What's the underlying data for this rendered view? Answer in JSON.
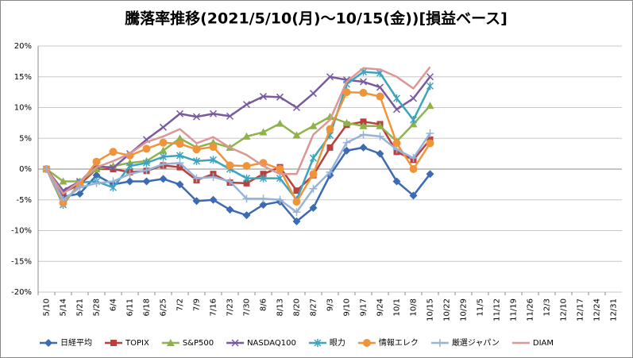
{
  "chart_data": {
    "type": "line",
    "title": "騰落率推移(2021/5/10(月)～10/15(金))[損益ベース]",
    "categories": [
      "5/10",
      "5/14",
      "5/21",
      "5/28",
      "6/4",
      "6/11",
      "6/18",
      "6/25",
      "7/2",
      "7/9",
      "7/16",
      "7/23",
      "7/30",
      "8/6",
      "8/13",
      "8/20",
      "8/27",
      "9/3",
      "9/10",
      "9/17",
      "9/24",
      "10/1",
      "10/8",
      "10/15",
      "10/22",
      "10/29",
      "11/5",
      "11/12",
      "11/19",
      "11/26",
      "12/3",
      "12/10",
      "12/17",
      "12/24",
      "12/31"
    ],
    "series": [
      {
        "name": "日経平均",
        "color": "#3c6ab3",
        "marker": "diamond",
        "values": [
          0,
          -4.5,
          -4,
          -1,
          -2.5,
          -2,
          -2,
          -1.6,
          -2.5,
          -5.2,
          -5,
          -6.6,
          -7.5,
          -5.8,
          -5.3,
          -8.5,
          -6.3,
          -1,
          3,
          3.5,
          2.5,
          -2,
          -4.3,
          -0.8,
          null,
          null,
          null,
          null,
          null,
          null,
          null,
          null,
          null,
          null,
          null
        ]
      },
      {
        "name": "TOPIX",
        "color": "#b9403d",
        "marker": "square",
        "values": [
          0,
          -3.8,
          -2.5,
          0,
          0,
          -0.5,
          -0.3,
          0.6,
          0.3,
          -1.8,
          -0.8,
          -2.2,
          -2.3,
          -0.8,
          0.3,
          -3.5,
          -1,
          3.5,
          7.2,
          7.7,
          7.3,
          2.8,
          1.5,
          4.8,
          null,
          null,
          null,
          null,
          null,
          null,
          null,
          null,
          null,
          null,
          null
        ]
      },
      {
        "name": "S&P500",
        "color": "#8fb24b",
        "marker": "triangle",
        "values": [
          0,
          -2,
          -2,
          0,
          0.5,
          1,
          1.3,
          3,
          5,
          3.5,
          4.3,
          3.5,
          5.3,
          6,
          7.4,
          5.5,
          7,
          8.5,
          7.5,
          7,
          7,
          4.5,
          7.3,
          10.3,
          null,
          null,
          null,
          null,
          null,
          null,
          null,
          null,
          null,
          null,
          null
        ]
      },
      {
        "name": "NASDAQ100",
        "color": "#7a5a9e",
        "marker": "x",
        "values": [
          0,
          -3.5,
          -2,
          0.5,
          0.2,
          2.5,
          4.8,
          6.8,
          9,
          8.5,
          9,
          8.6,
          10.5,
          11.8,
          11.7,
          10,
          12.3,
          15,
          14.5,
          14.2,
          13.3,
          9.7,
          11.5,
          15,
          null,
          null,
          null,
          null,
          null,
          null,
          null,
          null,
          null,
          null,
          null
        ]
      },
      {
        "name": "眼力",
        "color": "#3ea3bf",
        "marker": "star",
        "values": [
          0,
          -5.8,
          -2.2,
          -2,
          -3,
          0.5,
          1,
          2,
          2.2,
          1.3,
          1.5,
          0,
          -1.5,
          -1.5,
          -1.5,
          -5,
          1.8,
          5.5,
          13.8,
          15.8,
          15.6,
          11.5,
          8,
          13.5,
          null,
          null,
          null,
          null,
          null,
          null,
          null,
          null,
          null,
          null,
          null
        ]
      },
      {
        "name": "情報エレク",
        "color": "#f0943a",
        "marker": "circle",
        "values": [
          0,
          -5.5,
          -2.5,
          1.2,
          2.8,
          2.2,
          3.3,
          4.3,
          4.1,
          3.2,
          3.6,
          0.6,
          0.5,
          1,
          0,
          -5.3,
          -0.8,
          6.5,
          12.5,
          12.4,
          11.8,
          4.2,
          0,
          4.2,
          null,
          null,
          null,
          null,
          null,
          null,
          null,
          null,
          null,
          null,
          null
        ]
      },
      {
        "name": "厳選ジャパン",
        "color": "#98b3d8",
        "marker": "plus",
        "values": [
          0,
          -5,
          -3,
          -2.3,
          -2,
          -0.8,
          -0.2,
          0.8,
          1,
          -1.5,
          -1.3,
          -2,
          -4.8,
          -4.8,
          -5,
          -7,
          -3.2,
          -0.5,
          4.3,
          5.6,
          5.3,
          3.2,
          1.8,
          5.8,
          null,
          null,
          null,
          null,
          null,
          null,
          null,
          null,
          null,
          null,
          null
        ]
      },
      {
        "name": "DIAM",
        "color": "#dc9795",
        "marker": "none",
        "values": [
          0,
          -4,
          -2,
          0.3,
          1.3,
          2.5,
          4.4,
          5.3,
          6.5,
          4.2,
          5.2,
          3.5,
          2.3,
          0.5,
          -0.8,
          -0.8,
          5.6,
          8,
          14.2,
          16.4,
          16.2,
          15,
          13.1,
          16.6,
          null,
          null,
          null,
          null,
          null,
          null,
          null,
          null,
          null,
          null,
          null
        ]
      }
    ],
    "ylim": [
      -20,
      20
    ],
    "yticks": [
      {
        "value": -20,
        "label": "-20%"
      },
      {
        "value": -15,
        "label": "-15%"
      },
      {
        "value": -10,
        "label": "-10%"
      },
      {
        "value": -5,
        "label": "-5%"
      },
      {
        "value": 0,
        "label": "0%"
      },
      {
        "value": 5,
        "label": "5%"
      },
      {
        "value": 10,
        "label": "10%"
      },
      {
        "value": 15,
        "label": "15%"
      },
      {
        "value": 20,
        "label": "20%"
      }
    ],
    "grid": true,
    "legend": "bottom"
  }
}
